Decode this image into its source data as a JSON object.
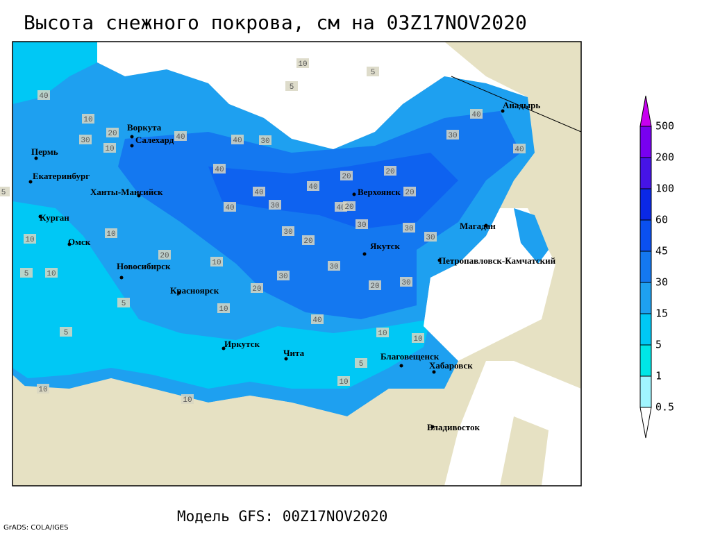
{
  "title": "Высота снежного покрова, см на 03Z17NOV2020",
  "subtitle": "Модель GFS: 00Z17NOV2020",
  "credit": "GrADS: COLA/IGES",
  "cities": [
    "Воркута",
    "Салехард",
    "Пермь",
    "Екатеринбург",
    "Ханты-Мансийск",
    "Курган",
    "Омск",
    "Новосибирск",
    "Красноярск",
    "Иркутск",
    "Чита",
    "Верхоянск",
    "Якутск",
    "Магадан",
    "Анадырь",
    "Петропавловск-Камчатский",
    "Благовещенск",
    "Хабаровск",
    "Владивосток"
  ],
  "legend": {
    "levels": [
      0.5,
      1,
      5,
      15,
      30,
      45,
      60,
      100,
      200,
      500
    ],
    "colors": [
      "#ffffff",
      "#a0f5ff",
      "#00e6e6",
      "#00c8f5",
      "#1ea0f0",
      "#1478f0",
      "#0a50f0",
      "#0a28e6",
      "#4614e6",
      "#7800f0",
      "#c800f0"
    ]
  },
  "contour_labels": [
    10,
    5,
    5,
    40,
    10,
    20,
    30,
    10,
    40,
    40,
    30,
    40,
    40,
    40,
    20,
    40,
    30,
    40,
    20,
    30,
    30,
    20,
    30,
    40,
    40,
    30,
    20,
    30,
    20,
    30,
    20,
    30,
    10,
    10,
    5,
    5,
    10,
    20,
    10,
    40,
    30,
    20,
    10,
    10,
    5,
    10,
    10,
    5,
    10,
    10,
    5
  ]
}
